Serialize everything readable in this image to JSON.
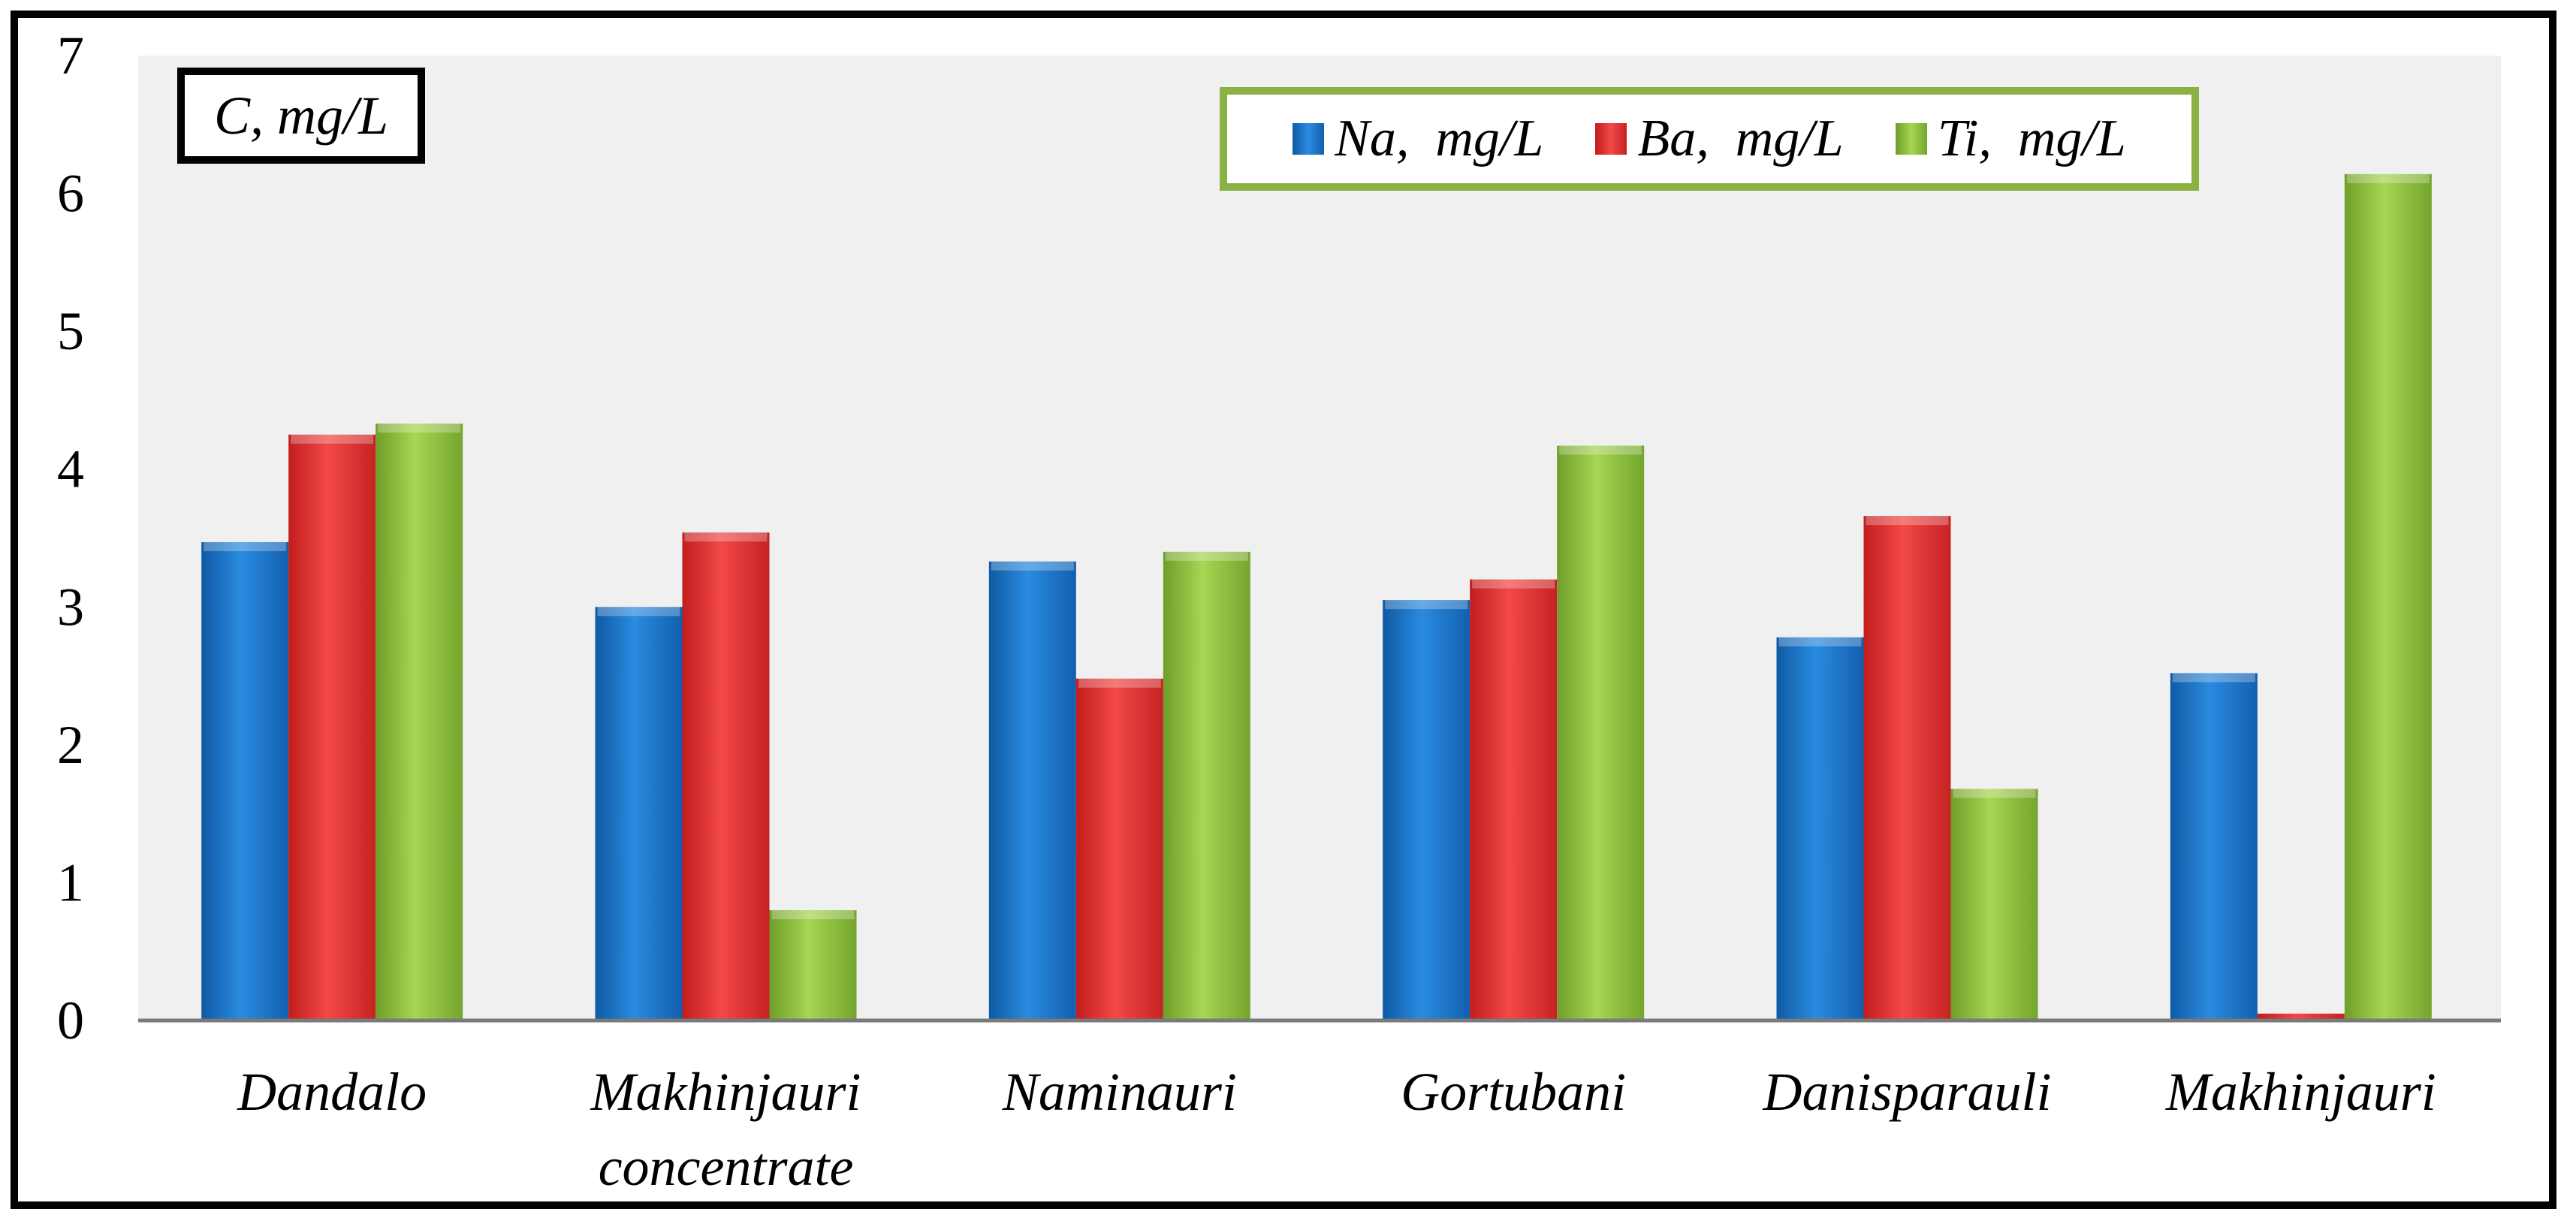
{
  "chart_data": {
    "type": "bar",
    "title": "C, mg/L",
    "ylabel": "C, mg/L",
    "xlabel": "",
    "ylim": [
      0,
      7
    ],
    "yticks": [
      0,
      1,
      2,
      3,
      4,
      5,
      6,
      7
    ],
    "grid": false,
    "legend_position": "top-right",
    "categories": [
      "Dandalo",
      "Makhinjauri concentrate",
      "Naminauri",
      "Gortubani",
      "Danisparauli",
      "Makhinjauri"
    ],
    "category_lines": [
      [
        "Dandalo"
      ],
      [
        "Makhinjauri",
        "concentrate"
      ],
      [
        "Naminauri"
      ],
      [
        "Gortubani"
      ],
      [
        "Danisparauli"
      ],
      [
        "Makhinjauri"
      ]
    ],
    "series": [
      {
        "name": "Na,  mg/L",
        "color": "#1a73c8",
        "values": [
          3.47,
          3.0,
          3.33,
          3.05,
          2.78,
          2.52
        ]
      },
      {
        "name": "Ba,  mg/L",
        "color": "#e53131",
        "values": [
          4.25,
          3.54,
          2.48,
          3.2,
          3.66,
          0.05
        ]
      },
      {
        "name": "Ti,  mg/L",
        "color": "#8fc43f",
        "values": [
          4.33,
          0.8,
          3.4,
          4.17,
          1.68,
          6.14
        ]
      }
    ]
  }
}
